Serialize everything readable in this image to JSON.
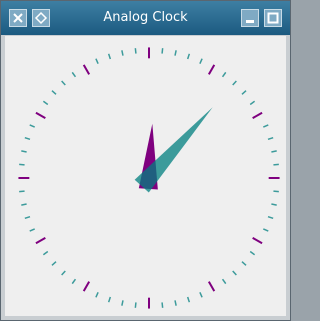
{
  "window": {
    "title": "Analog Clock"
  },
  "clock": {
    "hour": 12,
    "minute": 7
  }
}
